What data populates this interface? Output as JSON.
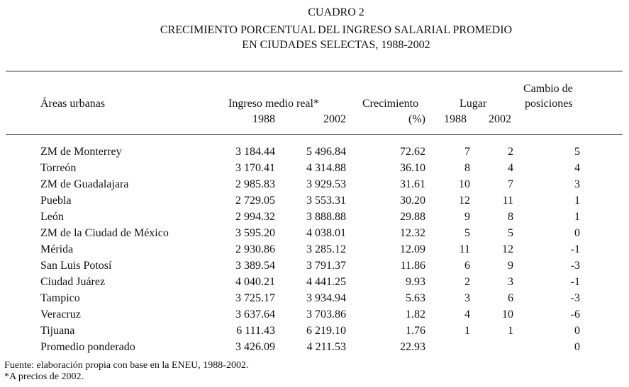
{
  "title": {
    "line1": "CUADRO 2",
    "line2": "CRECIMIENTO PORCENTUAL DEL INGRESO SALARIAL PROMEDIO",
    "line3": "EN CIUDADES SELECTAS, 1988-2002"
  },
  "headers": {
    "areas": "Áreas urbanas",
    "ingreso": "Ingreso medio real*",
    "y1988": "1988",
    "y2002": "2002",
    "crecimiento": "Crecimiento",
    "pct": "(%)",
    "lugar": "Lugar",
    "lugar1988": "1988",
    "lugar2002": "2002",
    "cambio1": "Cambio de",
    "cambio2": "posiciones"
  },
  "rows": [
    {
      "area": "ZM de Monterrey",
      "i1988": "3 184.44",
      "i2002": "5 496.84",
      "crec": "72.62",
      "l1988": "7",
      "l2002": "2",
      "cambio": "5"
    },
    {
      "area": "Torreón",
      "i1988": "3 170.41",
      "i2002": "4 314.88",
      "crec": "36.10",
      "l1988": "8",
      "l2002": "4",
      "cambio": "4"
    },
    {
      "area": "ZM de Guadalajara",
      "i1988": "2 985.83",
      "i2002": "3 929.53",
      "crec": "31.61",
      "l1988": "10",
      "l2002": "7",
      "cambio": "3"
    },
    {
      "area": "Puebla",
      "i1988": "2 729.05",
      "i2002": "3 553.31",
      "crec": "30.20",
      "l1988": "12",
      "l2002": "11",
      "cambio": "1"
    },
    {
      "area": "León",
      "i1988": "2 994.32",
      "i2002": "3 888.88",
      "crec": "29.88",
      "l1988": "9",
      "l2002": "8",
      "cambio": "1"
    },
    {
      "area": "ZM de la Ciudad de México",
      "i1988": "3 595.20",
      "i2002": "4 038.01",
      "crec": "12.32",
      "l1988": "5",
      "l2002": "5",
      "cambio": "0"
    },
    {
      "area": "Mérida",
      "i1988": "2 930.86",
      "i2002": "3 285.12",
      "crec": "12.09",
      "l1988": "11",
      "l2002": "12",
      "cambio": "-1"
    },
    {
      "area": "San Luis Potosí",
      "i1988": "3 389.54",
      "i2002": "3 791.37",
      "crec": "11.86",
      "l1988": "6",
      "l2002": "9",
      "cambio": "-3"
    },
    {
      "area": "Ciudad Juárez",
      "i1988": "4 040.21",
      "i2002": "4 441.25",
      "crec": "9.93",
      "l1988": "2",
      "l2002": "3",
      "cambio": "-1"
    },
    {
      "area": "Tampico",
      "i1988": "3 725.17",
      "i2002": "3 934.94",
      "crec": "5.63",
      "l1988": "3",
      "l2002": "6",
      "cambio": "-3"
    },
    {
      "area": "Veracruz",
      "i1988": "3 637.64",
      "i2002": "3 703.86",
      "crec": "1.82",
      "l1988": "4",
      "l2002": "10",
      "cambio": "-6"
    },
    {
      "area": "Tijuana",
      "i1988": "6 111.43",
      "i2002": "6 219.10",
      "crec": "1.76",
      "l1988": "1",
      "l2002": "1",
      "cambio": "0"
    },
    {
      "area": "Promedio ponderado",
      "i1988": "3 426.09",
      "i2002": "4 211.53",
      "crec": "22.93",
      "l1988": "",
      "l2002": "",
      "cambio": "0"
    }
  ],
  "footer": {
    "source": "Fuente: elaboración propia con base en la ENEU, 1988-2002.",
    "note": "*A precios de 2002."
  }
}
